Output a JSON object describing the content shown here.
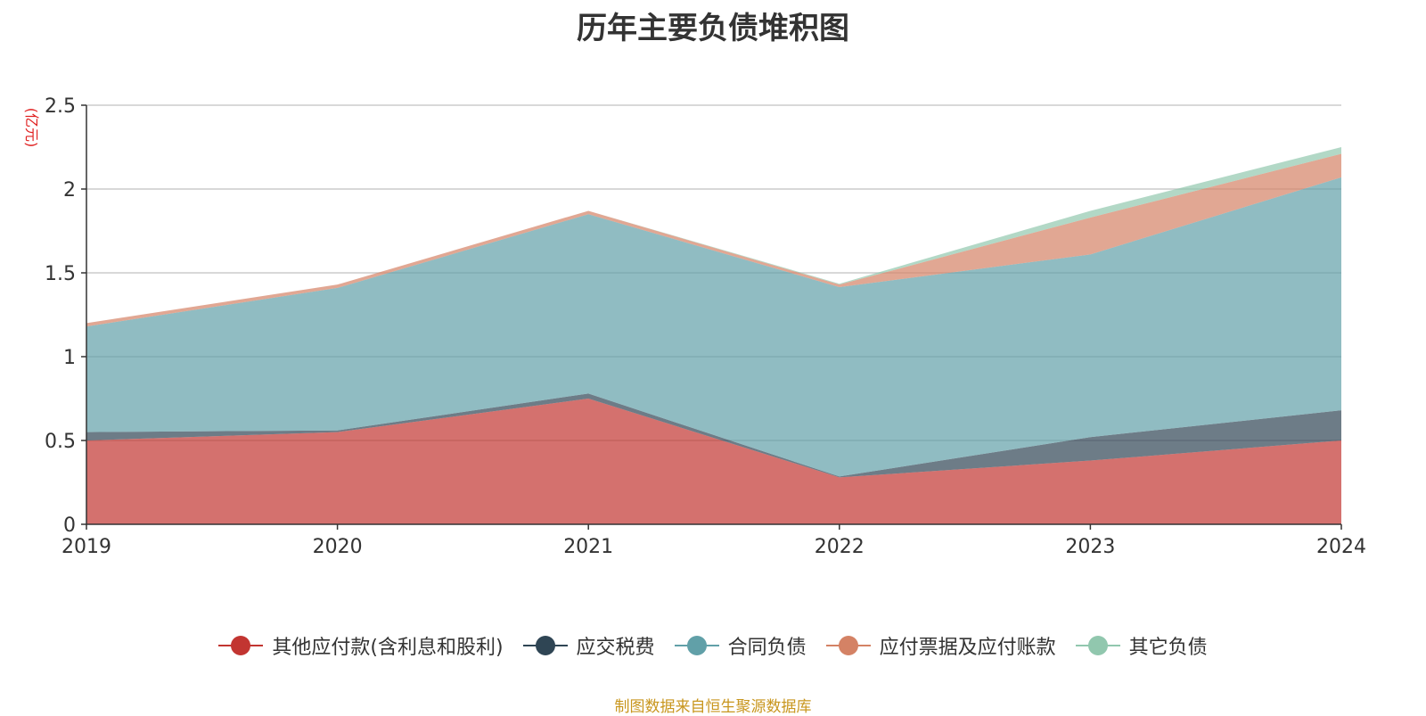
{
  "chart_data": {
    "type": "area",
    "stacked": true,
    "title": "历年主要负债堆积图",
    "unit_label": "(亿元)",
    "categories": [
      "2019",
      "2020",
      "2021",
      "2022",
      "2023",
      "2024"
    ],
    "ylim": [
      0,
      2.5
    ],
    "yticks": [
      "0",
      "0.5",
      "1",
      "1.5",
      "2",
      "2.5"
    ],
    "grid": true,
    "legend_position": "bottom",
    "series": [
      {
        "name": "其他应付款(含利息和股利)",
        "color": "#c23531",
        "values": [
          0.5,
          0.55,
          0.75,
          0.28,
          0.38,
          0.5
        ]
      },
      {
        "name": "应交税费",
        "color": "#2f4554",
        "values": [
          0.05,
          0.01,
          0.03,
          0.005,
          0.14,
          0.18
        ]
      },
      {
        "name": "合同负债",
        "color": "#61a0a8",
        "values": [
          0.63,
          0.85,
          1.07,
          1.13,
          1.09,
          1.39
        ]
      },
      {
        "name": "应付票据及应付账款",
        "color": "#d48265",
        "values": [
          0.02,
          0.02,
          0.02,
          0.015,
          0.22,
          0.14
        ]
      },
      {
        "name": "其它负债",
        "color": "#91c7ae",
        "values": [
          0.0,
          0.0,
          0.0,
          0.005,
          0.04,
          0.04
        ]
      }
    ],
    "source": "制图数据来自恒生聚源数据库"
  }
}
